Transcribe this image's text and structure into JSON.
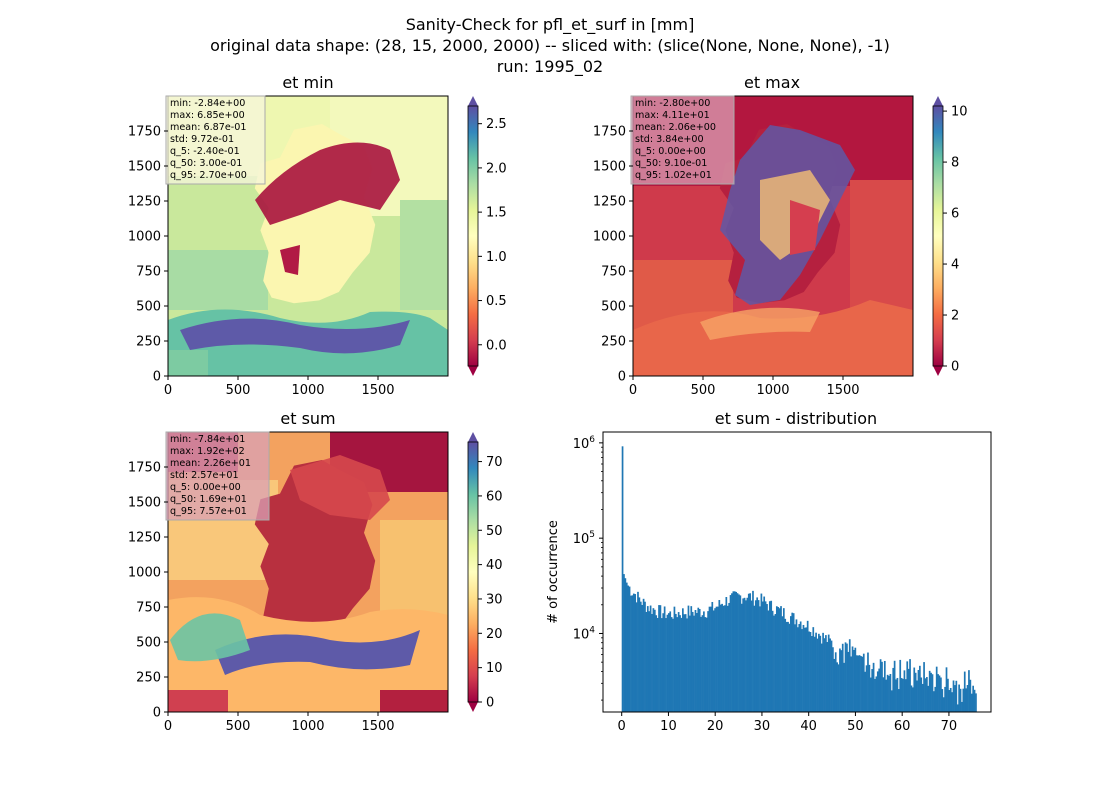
{
  "figure": {
    "suptitle_line1": "Sanity-Check for pfl_et_surf in [mm]",
    "suptitle_line2": "original data shape: (28, 15, 2000, 2000) -- sliced with: (slice(None, None, None), -1)",
    "suptitle_line3": "run: 1995_02"
  },
  "chart_data": [
    {
      "type": "heatmap",
      "title": "et min",
      "colormap": "Spectral",
      "xlim": [
        0,
        2000
      ],
      "ylim": [
        0,
        2000
      ],
      "xticks": [
        "0",
        "500",
        "1000",
        "1500"
      ],
      "yticks": [
        "0",
        "250",
        "500",
        "750",
        "1000",
        "1250",
        "1500",
        "1750"
      ],
      "colorbar": {
        "ticks": [
          0.0,
          0.5,
          1.0,
          1.5,
          2.0,
          2.5
        ],
        "labels": [
          "0.0",
          "0.5",
          "1.0",
          "1.5",
          "2.0",
          "2.5"
        ],
        "vmin": -0.24,
        "vmax": 2.7
      },
      "stats": [
        "min: -2.84e+00",
        "max: 6.85e+00",
        "mean: 6.87e-01",
        "std: 9.72e-01",
        "q_5: -2.40e-01",
        "q_50: 3.00e-01",
        "q_95: 2.70e+00"
      ],
      "stats_box_color": "#f5f5dc"
    },
    {
      "type": "heatmap",
      "title": "et max",
      "colormap": "Spectral",
      "xlim": [
        0,
        2000
      ],
      "ylim": [
        0,
        2000
      ],
      "xticks": [
        "0",
        "500",
        "1000",
        "1500"
      ],
      "yticks": [
        "0",
        "250",
        "500",
        "750",
        "1000",
        "1250",
        "1500",
        "1750"
      ],
      "colorbar": {
        "ticks": [
          0,
          2,
          4,
          6,
          8,
          10
        ],
        "labels": [
          "0",
          "2",
          "4",
          "6",
          "8",
          "10"
        ],
        "vmin": 0.0,
        "vmax": 10.2
      },
      "stats": [
        "min: -2.80e+00",
        "max: 4.11e+01",
        "mean: 2.06e+00",
        "std: 3.84e+00",
        "q_5: 0.00e+00",
        "q_50: 9.10e-01",
        "q_95: 1.02e+01"
      ],
      "stats_box_color": "#d9a0b6"
    },
    {
      "type": "heatmap",
      "title": "et sum",
      "colormap": "Spectral",
      "xlim": [
        0,
        2000
      ],
      "ylim": [
        0,
        2000
      ],
      "xticks": [
        "0",
        "500",
        "1000",
        "1500"
      ],
      "yticks": [
        "0",
        "250",
        "500",
        "750",
        "1000",
        "1250",
        "1500",
        "1750"
      ],
      "colorbar": {
        "ticks": [
          0,
          10,
          20,
          30,
          40,
          50,
          60,
          70
        ],
        "labels": [
          "0",
          "10",
          "20",
          "30",
          "40",
          "50",
          "60",
          "70"
        ],
        "vmin": 0.0,
        "vmax": 75.7
      },
      "stats": [
        "min: -7.84e+01",
        "max: 1.92e+02",
        "mean: 2.26e+01",
        "std: 2.57e+01",
        "q_5: 0.00e+00",
        "q_50: 1.69e+01",
        "q_95: 7.57e+01"
      ],
      "stats_box_color": "#d9a0b6"
    },
    {
      "type": "bar",
      "title": "et sum - distribution",
      "ylabel": "# of occurrence",
      "yscale": "log",
      "xlim": [
        -4,
        79
      ],
      "ylim": [
        1500,
        1300000
      ],
      "xticks": [
        0,
        10,
        20,
        30,
        40,
        50,
        60,
        70
      ],
      "ytick_labels": [
        {
          "base": "10",
          "exp": "4",
          "value": 10000
        },
        {
          "base": "10",
          "exp": "5",
          "value": 100000
        },
        {
          "base": "10",
          "exp": "6",
          "value": 1000000
        }
      ],
      "color": "#1f77b4",
      "bin_width": 0.3,
      "anchors_x": [
        0,
        0.3,
        0.6,
        1,
        2,
        3,
        4,
        5,
        6,
        8,
        10,
        12,
        14,
        16,
        18,
        20,
        22,
        24,
        26,
        28,
        30,
        32,
        34,
        36,
        38,
        40,
        42,
        44,
        46,
        48,
        50,
        52,
        54,
        56,
        58,
        60,
        62,
        64,
        66,
        68,
        70,
        72,
        74,
        75.7
      ],
      "anchors_y": [
        920000,
        42000,
        38000,
        33000,
        28000,
        25000,
        22000,
        20000,
        18500,
        17000,
        16000,
        16500,
        17000,
        17000,
        17500,
        19000,
        22000,
        24000,
        25000,
        24000,
        22000,
        19000,
        17000,
        15000,
        13500,
        12000,
        10000,
        8500,
        7200,
        6300,
        5500,
        5000,
        4600,
        4300,
        4100,
        4000,
        3900,
        3700,
        3500,
        3300,
        3100,
        3000,
        2900,
        2800
      ]
    }
  ]
}
